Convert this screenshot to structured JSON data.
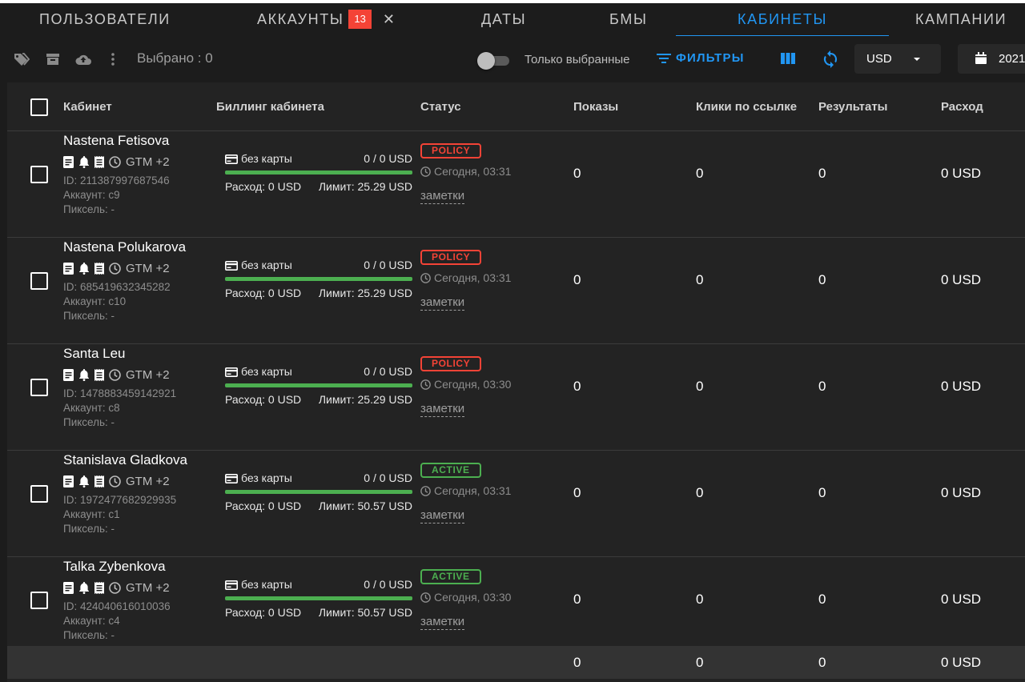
{
  "tabs": [
    {
      "label": "Пользователи",
      "active": false
    },
    {
      "label": "Аккаунты",
      "active": false,
      "badge": "13",
      "close": "✕"
    },
    {
      "label": "Даты",
      "active": false
    },
    {
      "label": "БМы",
      "active": false
    },
    {
      "label": "Кабинеты",
      "active": true
    },
    {
      "label": "Кампании",
      "active": false
    }
  ],
  "toolbar": {
    "selected_label": "Выбрано : 0",
    "only_selected_label": "Только выбранные",
    "only_selected_on": false,
    "filters_label": "ФИЛЬТРЫ",
    "currency_value": "USD",
    "date_value": "2021",
    "icons": [
      "tag-icon",
      "archive-icon",
      "cloud-upload-icon",
      "more-vert-icon",
      "filter-list-icon",
      "view-columns-icon",
      "sync-icon",
      "calendar-icon"
    ]
  },
  "colors": {
    "accent": "#2196f3",
    "badge": "#f44336",
    "policy": "#f44336",
    "active": "#4caf50"
  },
  "table": {
    "columns": [
      "Кабинет",
      "Биллинг кабинета",
      "Статус",
      "Показы",
      "Клики по ссылке",
      "Результаты",
      "Расход"
    ],
    "rows": [
      {
        "name": "Nastena Fetisova",
        "gtm": "GTM +2",
        "id": "ID: 211387997687546",
        "account": "Аккаунт: c9",
        "pixel": "Пиксель: -",
        "card": "без карты",
        "ratio": "0 / 0 USD",
        "spend": "Расход: 0 USD",
        "limit": "Лимит: 25.29 USD",
        "progress": 1,
        "status": "POLICY",
        "status_kind": "policy",
        "time": "Сегодня, 03:31",
        "notes": "заметки",
        "impressions": "0",
        "clicks": "0",
        "results": "0",
        "cost": "0 USD"
      },
      {
        "name": "Nastena Polukarova",
        "gtm": "GTM +2",
        "id": "ID: 685419632345282",
        "account": "Аккаунт: c10",
        "pixel": "Пиксель: -",
        "card": "без карты",
        "ratio": "0 / 0 USD",
        "spend": "Расход: 0 USD",
        "limit": "Лимит: 25.29 USD",
        "progress": 1,
        "status": "POLICY",
        "status_kind": "policy",
        "time": "Сегодня, 03:31",
        "notes": "заметки",
        "impressions": "0",
        "clicks": "0",
        "results": "0",
        "cost": "0 USD"
      },
      {
        "name": "Santa Leu",
        "gtm": "GTM +2",
        "id": "ID: 1478883459142921",
        "account": "Аккаунт: c8",
        "pixel": "Пиксель: -",
        "card": "без карты",
        "ratio": "0 / 0 USD",
        "spend": "Расход: 0 USD",
        "limit": "Лимит: 25.29 USD",
        "progress": 1,
        "status": "POLICY",
        "status_kind": "policy",
        "time": "Сегодня, 03:30",
        "notes": "заметки",
        "impressions": "0",
        "clicks": "0",
        "results": "0",
        "cost": "0 USD"
      },
      {
        "name": "Stanislava Gladkova",
        "gtm": "GTM +2",
        "id": "ID: 1972477682929935",
        "account": "Аккаунт: c1",
        "pixel": "Пиксель: -",
        "card": "без карты",
        "ratio": "0 / 0 USD",
        "spend": "Расход: 0 USD",
        "limit": "Лимит: 50.57 USD",
        "progress": 1,
        "status": "ACTIVE",
        "status_kind": "active",
        "time": "Сегодня, 03:31",
        "notes": "заметки",
        "impressions": "0",
        "clicks": "0",
        "results": "0",
        "cost": "0 USD"
      },
      {
        "name": "Talka Zybenkova",
        "gtm": "GTM +2",
        "id": "ID: 424040616010036",
        "account": "Аккаунт: c4",
        "pixel": "Пиксель: -",
        "card": "без карты",
        "ratio": "0 / 0 USD",
        "spend": "Расход: 0 USD",
        "limit": "Лимит: 50.57 USD",
        "progress": 1,
        "status": "ACTIVE",
        "status_kind": "active",
        "time": "Сегодня, 03:30",
        "notes": "заметки",
        "impressions": "0",
        "clicks": "0",
        "results": "0",
        "cost": "0 USD"
      }
    ],
    "totals": {
      "impressions": "0",
      "clicks": "0",
      "results": "0",
      "cost": "0 USD"
    }
  }
}
